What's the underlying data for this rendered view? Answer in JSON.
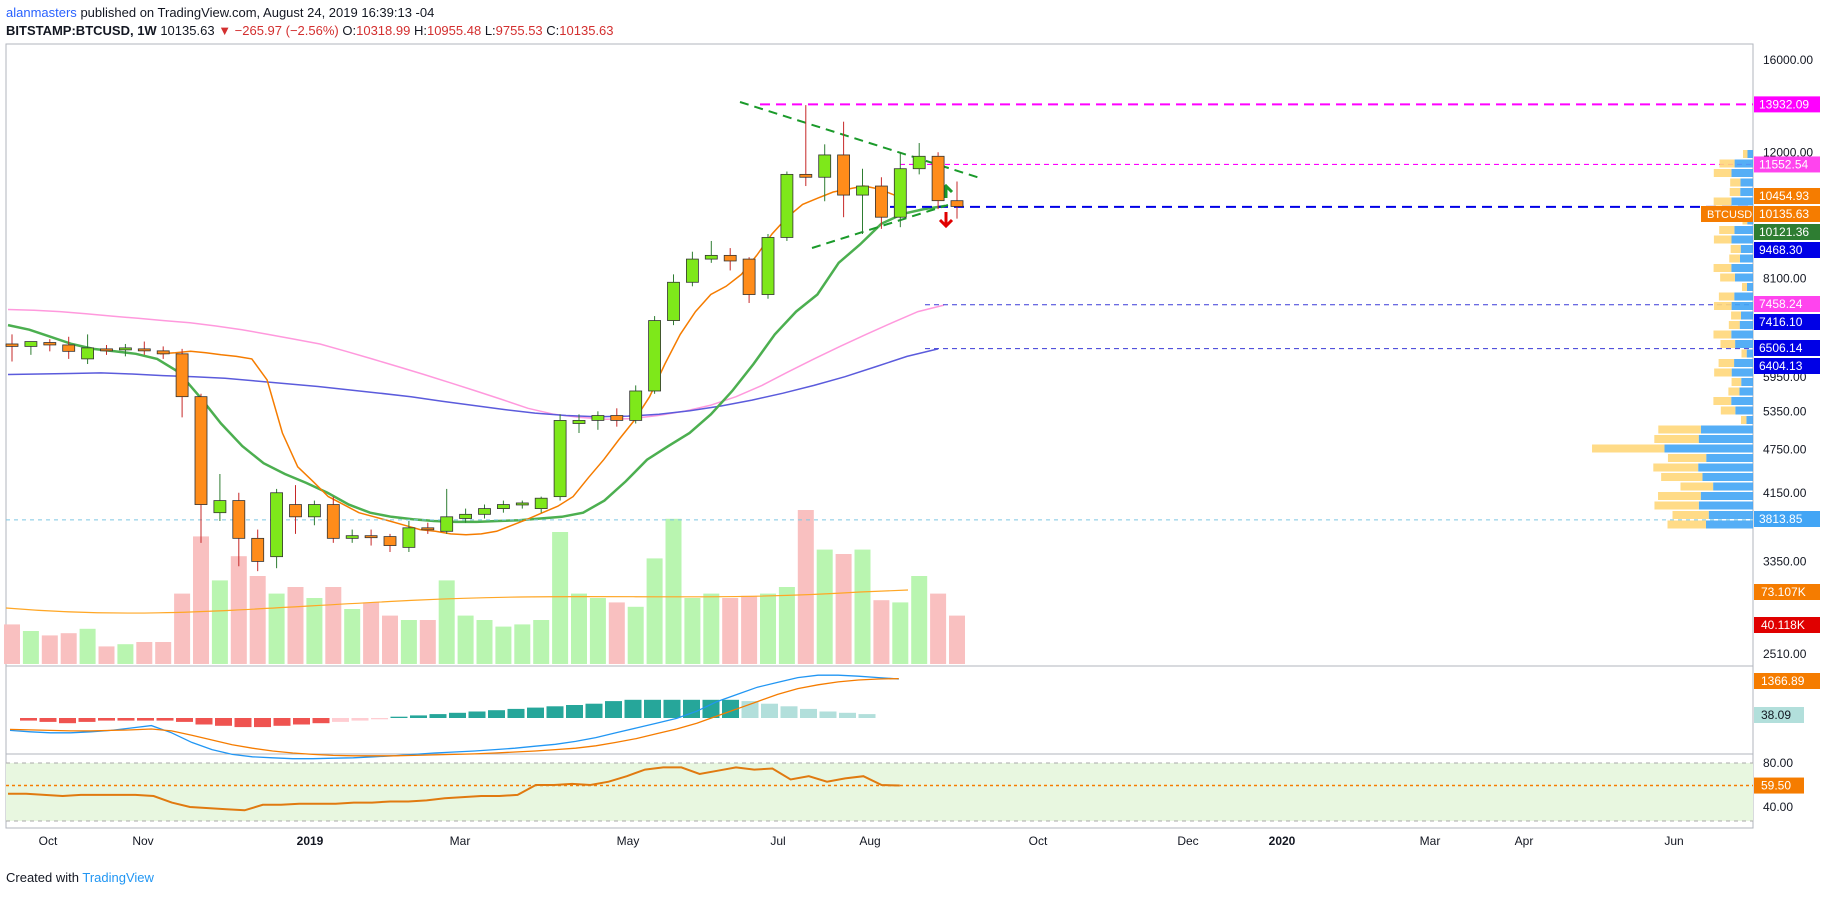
{
  "header": {
    "author": "alanmasters",
    "published_text": "published on TradingView.com, August 24, 2019 16:39:13 -04",
    "symbol": "BITSTAMP:BTCUSD, 1W",
    "last": "10135.63",
    "change": "▼ −265.97 (−2.56%)",
    "o_label": "O:",
    "o": "10318.99",
    "h_label": "H:",
    "h": "10955.48",
    "l_label": "L:",
    "l": "9755.53",
    "c_label": "C:",
    "c": "10135.63"
  },
  "footer": {
    "created_with": "Created with",
    "brand": "TradingView"
  },
  "colors": {
    "up": "#7ee81a",
    "down": "#ff8c1a",
    "vol_up": "#b9f5b0",
    "vol_down": "#f9c0c0",
    "ema_fast": "#f57c00",
    "ema_green": "#4caf50",
    "ma_pink": "#ff99dd",
    "ma_blue": "#5b5bdc",
    "magenta": "#ff00ff",
    "blue": "#0000e6"
  },
  "chart_data": {
    "type": "candlestick",
    "symbol": "BTCUSD",
    "interval": "1W",
    "y_scale": "log",
    "price_ticks": [
      "16000.00",
      "12000.00",
      "8100.00",
      "5950.00",
      "5350.00",
      "4750.00",
      "4150.00",
      "3350.00",
      "2510.00"
    ],
    "time_ticks": [
      "Oct",
      "Nov",
      "2019",
      "Mar",
      "May",
      "Jul",
      "Aug",
      "Oct",
      "Dec",
      "2020",
      "Mar",
      "Apr",
      "Jun"
    ],
    "candles": [
      {
        "o": 6600,
        "h": 6800,
        "l": 6250,
        "c": 6550
      },
      {
        "o": 6550,
        "h": 6650,
        "l": 6380,
        "c": 6650
      },
      {
        "o": 6630,
        "h": 6700,
        "l": 6450,
        "c": 6580
      },
      {
        "o": 6580,
        "h": 6750,
        "l": 6300,
        "c": 6450
      },
      {
        "o": 6300,
        "h": 6800,
        "l": 6200,
        "c": 6520
      },
      {
        "o": 6500,
        "h": 6580,
        "l": 6380,
        "c": 6480
      },
      {
        "o": 6480,
        "h": 6600,
        "l": 6350,
        "c": 6520
      },
      {
        "o": 6500,
        "h": 6650,
        "l": 6380,
        "c": 6460
      },
      {
        "o": 6460,
        "h": 6550,
        "l": 6300,
        "c": 6400
      },
      {
        "o": 6400,
        "h": 6500,
        "l": 5250,
        "c": 5600
      },
      {
        "o": 5600,
        "h": 5650,
        "l": 3550,
        "c": 4000
      },
      {
        "o": 3900,
        "h": 4400,
        "l": 3800,
        "c": 4050
      },
      {
        "o": 4050,
        "h": 4150,
        "l": 3300,
        "c": 3600
      },
      {
        "o": 3600,
        "h": 3700,
        "l": 3250,
        "c": 3350
      },
      {
        "o": 3400,
        "h": 4200,
        "l": 3280,
        "c": 4150
      },
      {
        "o": 4000,
        "h": 4250,
        "l": 3650,
        "c": 3850
      },
      {
        "o": 3850,
        "h": 4050,
        "l": 3750,
        "c": 4000
      },
      {
        "o": 4000,
        "h": 4100,
        "l": 3550,
        "c": 3600
      },
      {
        "o": 3600,
        "h": 3700,
        "l": 3550,
        "c": 3630
      },
      {
        "o": 3630,
        "h": 3700,
        "l": 3520,
        "c": 3610
      },
      {
        "o": 3620,
        "h": 3650,
        "l": 3450,
        "c": 3520
      },
      {
        "o": 3500,
        "h": 3800,
        "l": 3450,
        "c": 3720
      },
      {
        "o": 3720,
        "h": 3780,
        "l": 3650,
        "c": 3700
      },
      {
        "o": 3680,
        "h": 4200,
        "l": 3650,
        "c": 3850
      },
      {
        "o": 3830,
        "h": 3950,
        "l": 3780,
        "c": 3880
      },
      {
        "o": 3880,
        "h": 4000,
        "l": 3830,
        "c": 3950
      },
      {
        "o": 3950,
        "h": 4050,
        "l": 3900,
        "c": 4000
      },
      {
        "o": 4000,
        "h": 4050,
        "l": 3950,
        "c": 4020
      },
      {
        "o": 3950,
        "h": 4100,
        "l": 3900,
        "c": 4080
      },
      {
        "o": 4100,
        "h": 5300,
        "l": 4050,
        "c": 5200
      },
      {
        "o": 5150,
        "h": 5300,
        "l": 5000,
        "c": 5200
      },
      {
        "o": 5200,
        "h": 5350,
        "l": 5050,
        "c": 5280
      },
      {
        "o": 5280,
        "h": 5400,
        "l": 5100,
        "c": 5200
      },
      {
        "o": 5200,
        "h": 5800,
        "l": 5150,
        "c": 5700
      },
      {
        "o": 5700,
        "h": 7200,
        "l": 5650,
        "c": 7100
      },
      {
        "o": 7100,
        "h": 8200,
        "l": 7000,
        "c": 8000
      },
      {
        "o": 8000,
        "h": 8800,
        "l": 7900,
        "c": 8600
      },
      {
        "o": 8600,
        "h": 9100,
        "l": 8500,
        "c": 8700
      },
      {
        "o": 8700,
        "h": 8900,
        "l": 8300,
        "c": 8550
      },
      {
        "o": 8600,
        "h": 8650,
        "l": 7500,
        "c": 7700
      },
      {
        "o": 7700,
        "h": 9300,
        "l": 7600,
        "c": 9200
      },
      {
        "o": 9200,
        "h": 11300,
        "l": 9100,
        "c": 11200
      },
      {
        "o": 11200,
        "h": 13900,
        "l": 10800,
        "c": 11100
      },
      {
        "o": 11100,
        "h": 12300,
        "l": 10300,
        "c": 11900
      },
      {
        "o": 11900,
        "h": 13200,
        "l": 9800,
        "c": 10500
      },
      {
        "o": 10500,
        "h": 11400,
        "l": 9300,
        "c": 10800
      },
      {
        "o": 10800,
        "h": 11100,
        "l": 9450,
        "c": 9800
      },
      {
        "o": 9800,
        "h": 12000,
        "l": 9500,
        "c": 11400
      },
      {
        "o": 11400,
        "h": 12350,
        "l": 11200,
        "c": 11850
      },
      {
        "o": 11850,
        "h": 12000,
        "l": 10050,
        "c": 10318
      },
      {
        "o": 10318,
        "h": 10955,
        "l": 9755,
        "c": 10135
      }
    ],
    "volumes": [
      18,
      15,
      13,
      14,
      16,
      8,
      9,
      10,
      10,
      32,
      58,
      38,
      49,
      40,
      32,
      35,
      30,
      35,
      25,
      28,
      22,
      20,
      20,
      38,
      22,
      20,
      17,
      18,
      20,
      60,
      32,
      30,
      28,
      26,
      48,
      66,
      30,
      32,
      30,
      31,
      32,
      35,
      70,
      52,
      50,
      52,
      29,
      28,
      40,
      32,
      22
    ],
    "ema_fast": [
      6400,
      6420,
      6450,
      6420,
      6380,
      6350,
      6300,
      5900,
      5000,
      4500,
      4300,
      4100,
      4000,
      3900,
      3850,
      3800,
      3750,
      3700,
      3680,
      3650,
      3640,
      3650,
      3680,
      3750,
      3820,
      3900,
      3980,
      4100,
      4350,
      4600,
      4900,
      5200,
      5600,
      6200,
      6800,
      7300,
      7700,
      7900,
      8200,
      8700,
      9300,
      9800,
      10200,
      10400,
      10600,
      10700,
      10800,
      10700,
      10500
    ],
    "ema_green": [
      7000,
      6900,
      6750,
      6600,
      6500,
      6450,
      6400,
      6300,
      6050,
      5600,
      5150,
      4800,
      4550,
      4400,
      4280,
      4150,
      4000,
      3900,
      3850,
      3820,
      3800,
      3790,
      3790,
      3800,
      3810,
      3830,
      3850,
      3900,
      4050,
      4300,
      4600,
      4800,
      5000,
      5300,
      5700,
      6200,
      6800,
      7300,
      7700,
      8500,
      9000,
      9600,
      9900,
      10050,
      10150
    ],
    "ma_pink": [
      7350,
      7330,
      7300,
      7250,
      7200,
      7150,
      7100,
      7050,
      6980,
      6900,
      6800,
      6700,
      6600,
      6450,
      6300,
      6150,
      6000,
      5850,
      5700,
      5550,
      5400,
      5300,
      5250,
      5220,
      5230,
      5280,
      5350,
      5450,
      5600,
      5800,
      6050,
      6300,
      6550,
      6800,
      7050,
      7300,
      7450
    ],
    "ma_blue": [
      6000,
      6010,
      6020,
      6030,
      6010,
      5980,
      5960,
      5930,
      5880,
      5830,
      5780,
      5720,
      5660,
      5600,
      5520,
      5450,
      5380,
      5320,
      5280,
      5260,
      5270,
      5300,
      5360,
      5440,
      5540,
      5660,
      5800,
      5960,
      6150,
      6350,
      6500
    ],
    "levels": [
      {
        "label": "13932.09",
        "value": 13932.09
      },
      {
        "label": "11552.54",
        "value": 11552.54
      },
      {
        "label": "10454.93",
        "value": 10454.93
      },
      {
        "label": "10135.63",
        "value": 10135.63
      },
      {
        "label": "10121.36",
        "value": 10121.36
      },
      {
        "label": "9468.30",
        "value": 9468.3
      },
      {
        "label": "7458.24",
        "value": 7458.24
      },
      {
        "label": "7416.10",
        "value": 7416.1
      },
      {
        "label": "6506.14",
        "value": 6506.14
      },
      {
        "label": "6404.13",
        "value": 6404.13
      },
      {
        "label": "3813.85",
        "value": 3813.85
      }
    ],
    "symbol_tag": "BTCUSD",
    "volume_labels": [
      "73.107K",
      "40.118K"
    ],
    "macd": {
      "label": "1366.89",
      "label2": "38.09",
      "macd_line": [
        -5,
        -8,
        -10,
        -10,
        -8,
        -5,
        0,
        5,
        -10,
        -30,
        -45,
        -55,
        -60,
        -62,
        -64,
        -64,
        -63,
        -62,
        -60,
        -58,
        -55,
        -52,
        -50,
        -48,
        -45,
        -42,
        -38,
        -34,
        -28,
        -20,
        -10,
        0,
        10,
        20,
        35,
        55,
        70,
        85,
        95,
        105,
        110,
        110,
        108,
        105,
        102
      ],
      "signal_line": [
        -3,
        -4,
        -5,
        -6,
        -6,
        -5,
        -4,
        -2,
        -6,
        -15,
        -25,
        -35,
        -42,
        -48,
        -52,
        -55,
        -57,
        -58,
        -58,
        -58,
        -57,
        -56,
        -55,
        -54,
        -52,
        -50,
        -48,
        -45,
        -42,
        -37,
        -30,
        -22,
        -12,
        -2,
        10,
        25,
        40,
        55,
        70,
        82,
        90,
        96,
        100,
        102,
        103
      ],
      "histogram": [
        -2,
        -3,
        -4,
        -3,
        -2,
        -2,
        -2,
        -2,
        -3,
        -5,
        -6,
        -7,
        -7,
        -6,
        -5,
        -4,
        -3,
        -2,
        -1,
        1,
        2,
        3,
        4,
        5,
        6,
        7,
        8,
        9,
        10,
        11,
        13,
        14,
        14,
        14,
        14,
        14,
        14,
        13,
        11,
        9,
        7,
        5,
        4,
        3
      ]
    },
    "rsi": {
      "label": "59.50",
      "ticks": [
        "80.00",
        "40.00"
      ],
      "values": [
        52,
        52,
        51,
        50,
        51,
        51,
        51,
        51,
        50,
        44,
        40,
        39,
        38,
        37,
        42,
        42,
        43,
        43,
        43,
        44,
        44,
        45,
        45,
        46,
        48,
        49,
        50,
        50,
        51,
        60,
        60,
        61,
        60,
        63,
        68,
        74,
        76,
        76,
        70,
        73,
        76,
        74,
        75,
        65,
        68,
        63,
        66,
        68,
        60,
        59.5
      ]
    }
  }
}
